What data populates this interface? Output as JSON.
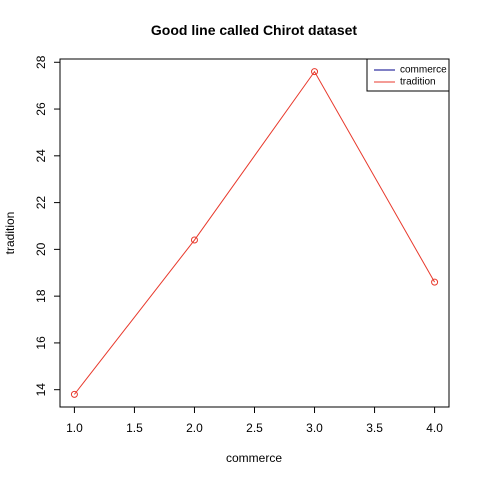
{
  "chart_data": {
    "type": "line",
    "title": "Good line called Chirot dataset",
    "xlabel": "commerce",
    "ylabel": "tradition",
    "xlim": [
      0.88,
      4.12
    ],
    "ylim": [
      13.26,
      28.14
    ],
    "x_ticks": [
      1.0,
      1.5,
      2.0,
      2.5,
      3.0,
      3.5,
      4.0
    ],
    "x_tick_labels": [
      "1.0",
      "1.5",
      "2.0",
      "2.5",
      "3.0",
      "3.5",
      "4.0"
    ],
    "y_ticks": [
      14,
      16,
      18,
      20,
      22,
      24,
      26,
      28
    ],
    "y_tick_labels": [
      "14",
      "16",
      "18",
      "20",
      "22",
      "24",
      "26",
      "28"
    ],
    "grid": false,
    "legend_position": "top-right",
    "legend": [
      {
        "label": "commerce",
        "color": "#00008b"
      },
      {
        "label": "tradition",
        "color": "#e8392c"
      }
    ],
    "series": [
      {
        "name": "tradition",
        "color": "#e8392c",
        "marker": "open-circle",
        "x": [
          1,
          2,
          3,
          4
        ],
        "y": [
          13.8,
          20.4,
          27.6,
          18.6
        ]
      }
    ]
  }
}
